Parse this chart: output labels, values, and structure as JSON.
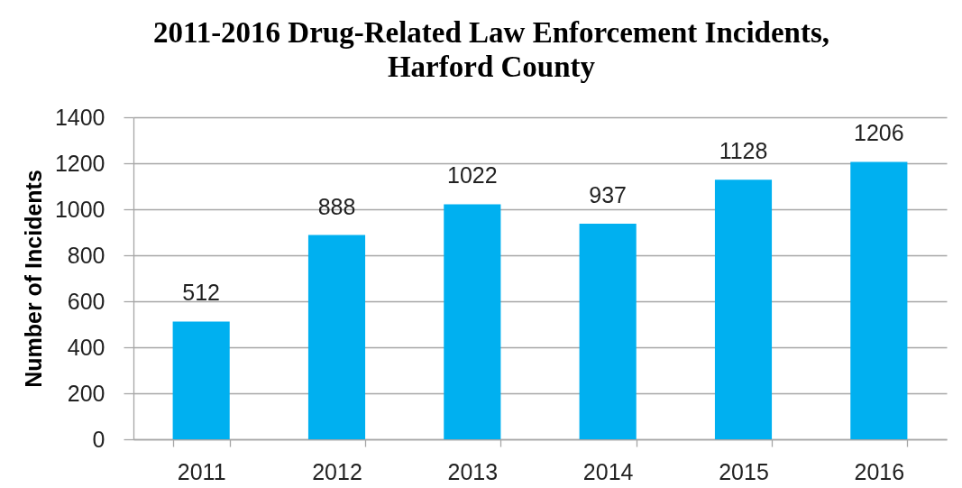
{
  "chart_data": {
    "type": "bar",
    "title": "2011-2016 Drug-Related Law Enforcement Incidents,\nHarford County",
    "ylabel": "Number of Incidents",
    "categories": [
      "2011",
      "2012",
      "2013",
      "2014",
      "2015",
      "2016"
    ],
    "values": [
      512,
      888,
      1022,
      937,
      1128,
      1206
    ],
    "color": "#00b0f0",
    "ylim": [
      0,
      1400
    ],
    "yticks": [
      0,
      200,
      400,
      600,
      800,
      1000,
      1200,
      1400
    ],
    "grid": "y",
    "data_labels": true
  }
}
